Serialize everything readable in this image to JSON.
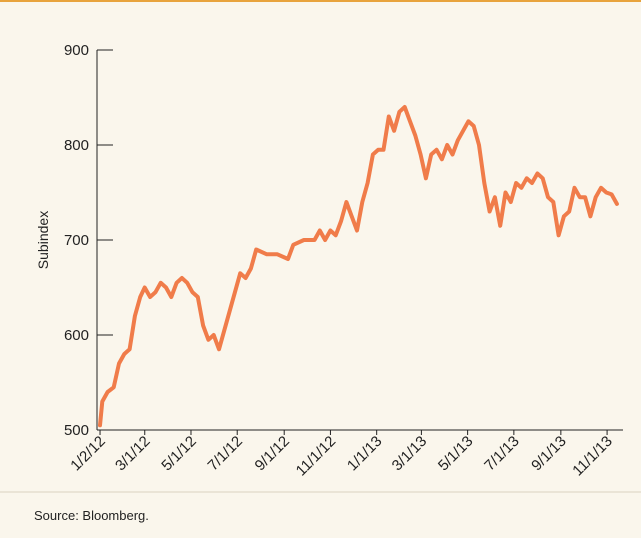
{
  "chart_data": {
    "type": "line",
    "y_label": "Subindex",
    "source": "Source: Bloomberg.",
    "x": [
      "2012-01-02",
      "2012-01-05",
      "2012-01-12",
      "2012-01-20",
      "2012-01-27",
      "2012-02-03",
      "2012-02-10",
      "2012-02-17",
      "2012-02-24",
      "2012-03-01",
      "2012-03-08",
      "2012-03-15",
      "2012-03-22",
      "2012-03-29",
      "2012-04-05",
      "2012-04-12",
      "2012-04-19",
      "2012-04-26",
      "2012-05-03",
      "2012-05-10",
      "2012-05-17",
      "2012-05-24",
      "2012-05-31",
      "2012-06-07",
      "2012-06-14",
      "2012-06-21",
      "2012-06-28",
      "2012-07-05",
      "2012-07-12",
      "2012-07-19",
      "2012-07-26",
      "2012-08-09",
      "2012-08-23",
      "2012-09-06",
      "2012-09-13",
      "2012-09-27",
      "2012-10-11",
      "2012-10-18",
      "2012-10-25",
      "2012-11-01",
      "2012-11-08",
      "2012-11-15",
      "2012-11-22",
      "2012-11-29",
      "2012-12-06",
      "2012-12-13",
      "2012-12-20",
      "2012-12-27",
      "2013-01-03",
      "2013-01-10",
      "2013-01-17",
      "2013-01-24",
      "2013-01-31",
      "2013-02-07",
      "2013-02-14",
      "2013-02-21",
      "2013-02-28",
      "2013-03-07",
      "2013-03-14",
      "2013-03-21",
      "2013-03-28",
      "2013-04-04",
      "2013-04-11",
      "2013-04-18",
      "2013-04-25",
      "2013-05-02",
      "2013-05-09",
      "2013-05-16",
      "2013-05-23",
      "2013-05-30",
      "2013-06-06",
      "2013-06-13",
      "2013-06-20",
      "2013-06-27",
      "2013-07-04",
      "2013-07-11",
      "2013-07-18",
      "2013-07-25",
      "2013-08-01",
      "2013-08-08",
      "2013-08-15",
      "2013-08-22",
      "2013-08-29",
      "2013-09-05",
      "2013-09-12",
      "2013-09-19",
      "2013-09-26",
      "2013-10-03",
      "2013-10-10",
      "2013-10-17",
      "2013-10-24",
      "2013-10-31",
      "2013-11-07",
      "2013-11-14"
    ],
    "series": [
      {
        "name": "Subindex",
        "color": "#f07c4a",
        "values": [
          505,
          530,
          540,
          545,
          570,
          580,
          585,
          620,
          640,
          650,
          640,
          645,
          655,
          650,
          640,
          655,
          660,
          655,
          645,
          640,
          610,
          595,
          600,
          585,
          605,
          625,
          645,
          665,
          660,
          670,
          690,
          685,
          685,
          680,
          695,
          700,
          700,
          710,
          700,
          710,
          705,
          720,
          740,
          725,
          710,
          740,
          760,
          790,
          795,
          795,
          830,
          815,
          835,
          840,
          825,
          810,
          790,
          765,
          790,
          795,
          785,
          800,
          790,
          805,
          815,
          825,
          820,
          800,
          760,
          730,
          745,
          715,
          750,
          740,
          760,
          755,
          765,
          760,
          770,
          765,
          745,
          740,
          705,
          725,
          730,
          755,
          745,
          745,
          725,
          745,
          755,
          750,
          748,
          738
        ]
      }
    ],
    "xlim": [
      "2011-12-29",
      "2013-11-22"
    ],
    "xticks": [
      {
        "value": "2012-01-02",
        "label": "1/2/12"
      },
      {
        "value": "2012-03-01",
        "label": "3/1/12"
      },
      {
        "value": "2012-05-01",
        "label": "5/1/12"
      },
      {
        "value": "2012-07-01",
        "label": "7/1/12"
      },
      {
        "value": "2012-09-01",
        "label": "9/1/12"
      },
      {
        "value": "2012-11-01",
        "label": "11/1/12"
      },
      {
        "value": "2013-01-01",
        "label": "1/1/13"
      },
      {
        "value": "2013-03-01",
        "label": "3/1/13"
      },
      {
        "value": "2013-05-01",
        "label": "5/1/13"
      },
      {
        "value": "2013-07-01",
        "label": "7/1/13"
      },
      {
        "value": "2013-09-01",
        "label": "9/1/13"
      },
      {
        "value": "2013-11-01",
        "label": "11/1/13"
      }
    ],
    "ylim": [
      500,
      900
    ],
    "yticks": [
      500,
      600,
      700,
      800,
      900
    ]
  }
}
